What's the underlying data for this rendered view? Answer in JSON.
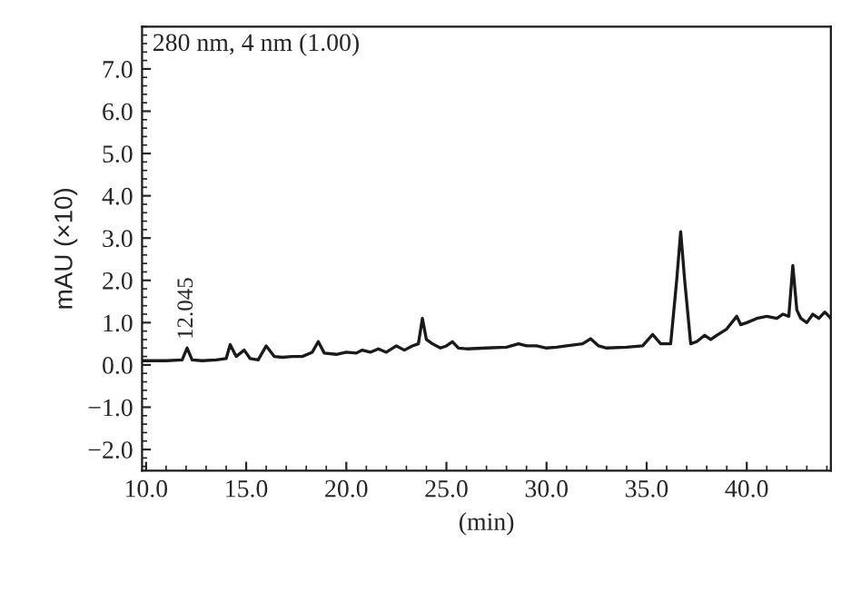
{
  "chart_data": {
    "type": "line",
    "ylabel": "mAU (×10)",
    "xlabel": "(min)",
    "annotations": [
      {
        "text": "12.045",
        "x": 12.045,
        "y": 0.42
      },
      "280 nm, 4 nm (1.00)"
    ],
    "xlim": [
      9.8,
      44.2
    ],
    "xticks": [
      {
        "value": 10,
        "label": "10.0"
      },
      {
        "value": 15,
        "label": "15.0"
      },
      {
        "value": 20,
        "label": "20.0"
      },
      {
        "value": 25,
        "label": "25.0"
      },
      {
        "value": 30,
        "label": "30.0"
      },
      {
        "value": 35,
        "label": "35.0"
      },
      {
        "value": 40,
        "label": "40.0"
      }
    ],
    "ylim": [
      -2.5,
      8.0
    ],
    "yticks": [
      {
        "value": -2,
        "label": "−2.0"
      },
      {
        "value": -1,
        "label": "−1.0"
      },
      {
        "value": 0,
        "label": "0.0"
      },
      {
        "value": 1,
        "label": "1.0"
      },
      {
        "value": 2,
        "label": "2.0"
      },
      {
        "value": 3,
        "label": "3.0"
      },
      {
        "value": 4,
        "label": "4.0"
      },
      {
        "value": 5,
        "label": "5.0"
      },
      {
        "value": 6,
        "label": "6.0"
      },
      {
        "value": 7,
        "label": "7.0"
      }
    ],
    "grid": false,
    "legend": false,
    "marker": "none",
    "line_style": "solid",
    "series": [
      {
        "color": "#1a1a1a",
        "x": [
          9.8,
          11.0,
          11.8,
          12.05,
          12.3,
          12.8,
          13.5,
          14.0,
          14.2,
          14.5,
          14.9,
          15.2,
          15.6,
          16.0,
          16.4,
          16.8,
          17.3,
          17.8,
          18.3,
          18.6,
          18.9,
          19.5,
          20.0,
          20.5,
          20.8,
          21.2,
          21.6,
          22.0,
          22.5,
          22.9,
          23.3,
          23.6,
          23.8,
          24.0,
          24.3,
          24.7,
          25.0,
          25.3,
          25.6,
          26.0,
          27.0,
          28.0,
          28.6,
          29.0,
          29.5,
          30.0,
          30.5,
          31.0,
          31.8,
          32.2,
          32.6,
          33.0,
          34.0,
          34.8,
          35.3,
          35.7,
          36.2,
          36.5,
          36.7,
          36.9,
          37.2,
          37.5,
          37.9,
          38.2,
          38.5,
          39.0,
          39.5,
          39.7,
          40.0,
          40.5,
          41.0,
          41.5,
          41.8,
          42.1,
          42.3,
          42.5,
          42.7,
          43.0,
          43.3,
          43.6,
          43.9,
          44.2
        ],
        "values": [
          0.1,
          0.1,
          0.12,
          0.4,
          0.12,
          0.1,
          0.12,
          0.15,
          0.48,
          0.2,
          0.35,
          0.15,
          0.12,
          0.45,
          0.2,
          0.18,
          0.2,
          0.2,
          0.3,
          0.55,
          0.28,
          0.25,
          0.3,
          0.28,
          0.35,
          0.3,
          0.38,
          0.3,
          0.45,
          0.35,
          0.45,
          0.5,
          1.1,
          0.6,
          0.5,
          0.4,
          0.45,
          0.55,
          0.4,
          0.38,
          0.4,
          0.42,
          0.5,
          0.45,
          0.45,
          0.4,
          0.42,
          0.45,
          0.5,
          0.62,
          0.45,
          0.4,
          0.42,
          0.45,
          0.72,
          0.5,
          0.5,
          2.0,
          3.15,
          2.0,
          0.5,
          0.55,
          0.7,
          0.6,
          0.7,
          0.85,
          1.15,
          0.95,
          1.0,
          1.1,
          1.15,
          1.1,
          1.2,
          1.15,
          2.35,
          1.3,
          1.1,
          1.0,
          1.2,
          1.1,
          1.25,
          1.1
        ]
      }
    ]
  }
}
